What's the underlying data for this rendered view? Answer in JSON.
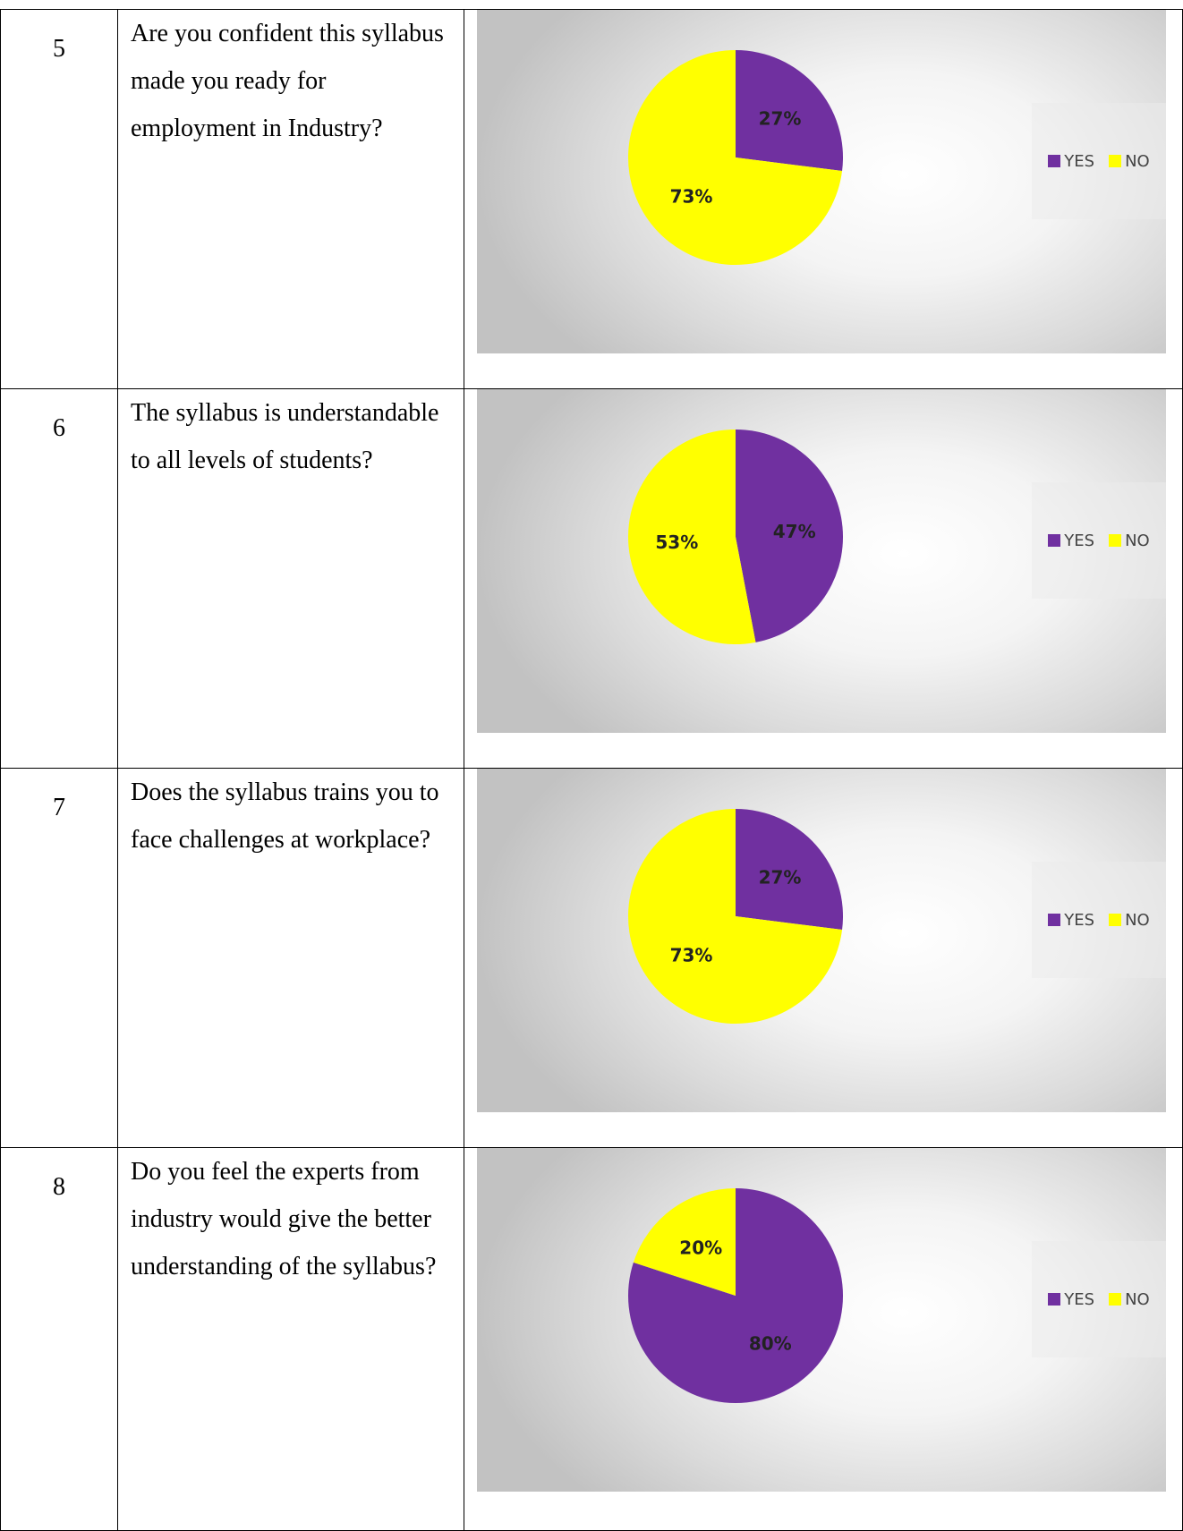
{
  "rows": [
    {
      "number": "5",
      "question": "Are you confident this syllabus made you ready for employment in Industry?",
      "chart": {
        "labels": [
          "27%",
          "73%"
        ]
      }
    },
    {
      "number": "6",
      "question": "The syllabus is understandable to all levels of students?",
      "chart": {
        "labels": [
          "47%",
          "53%"
        ]
      }
    },
    {
      "number": "7",
      "question": "Does the syllabus trains you to face challenges at workplace?",
      "chart": {
        "labels": [
          "27%",
          "73%"
        ]
      }
    },
    {
      "number": "8",
      "question": "Do you feel the experts from industry would give the better understanding of the syllabus?",
      "chart": {
        "labels": [
          "80%",
          "20%"
        ]
      }
    }
  ],
  "legend": {
    "yes_label": "YES",
    "no_label": "NO"
  },
  "colors": {
    "yes": "#7030a0",
    "no": "#ffff00"
  },
  "chart_data": [
    {
      "type": "pie",
      "categories": [
        "YES",
        "NO"
      ],
      "values": [
        27,
        73
      ],
      "legend": "right"
    },
    {
      "type": "pie",
      "categories": [
        "YES",
        "NO"
      ],
      "values": [
        47,
        53
      ],
      "legend": "right"
    },
    {
      "type": "pie",
      "categories": [
        "YES",
        "NO"
      ],
      "values": [
        27,
        73
      ],
      "legend": "right"
    },
    {
      "type": "pie",
      "categories": [
        "YES",
        "NO"
      ],
      "values": [
        80,
        20
      ],
      "legend": "right"
    }
  ]
}
